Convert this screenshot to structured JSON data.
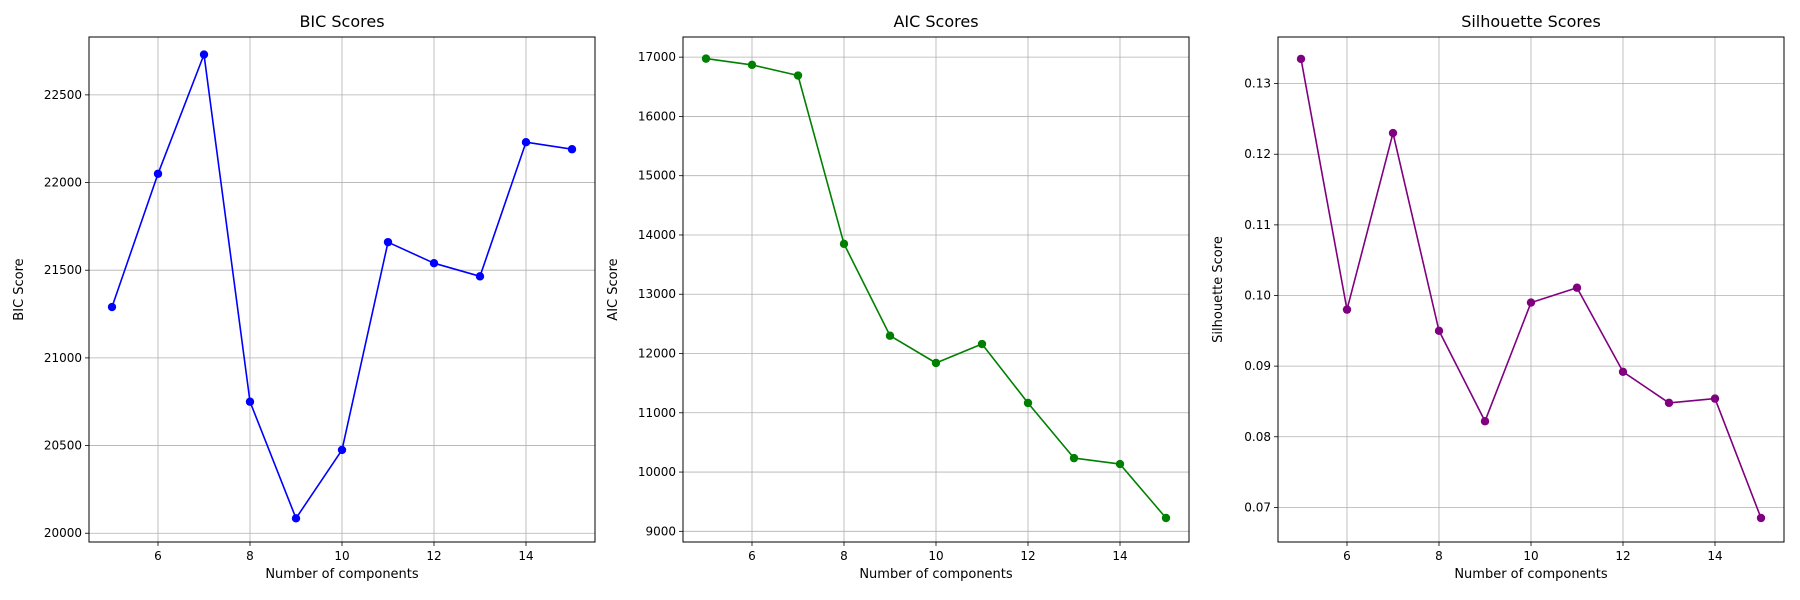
{
  "chart_data": [
    {
      "type": "line",
      "title": "BIC Scores",
      "xlabel": "Number of components",
      "ylabel": "BIC Score",
      "xlim": [
        4.5,
        15.5
      ],
      "ylim": [
        19950,
        22830
      ],
      "xticks": [
        6,
        8,
        10,
        12,
        14
      ],
      "yticks": [
        20000,
        20500,
        21000,
        21500,
        22000,
        22500
      ],
      "grid": true,
      "color": "#0000ff",
      "marker": "circle",
      "x": [
        5,
        6,
        7,
        8,
        9,
        10,
        11,
        12,
        13,
        14,
        15
      ],
      "y": [
        21290,
        22050,
        22730,
        20750,
        20085,
        20475,
        21660,
        21540,
        21465,
        22230,
        22190
      ]
    },
    {
      "type": "line",
      "title": "AIC Scores",
      "xlabel": "Number of components",
      "ylabel": "AIC Score",
      "xlim": [
        4.5,
        15.5
      ],
      "ylim": [
        8820,
        17340
      ],
      "xticks": [
        6,
        8,
        10,
        12,
        14
      ],
      "yticks": [
        9000,
        10000,
        11000,
        12000,
        13000,
        14000,
        15000,
        16000,
        17000
      ],
      "grid": true,
      "color": "#008000",
      "marker": "circle",
      "x": [
        5,
        6,
        7,
        8,
        9,
        10,
        11,
        12,
        13,
        14,
        15
      ],
      "y": [
        16975,
        16870,
        16690,
        13850,
        12300,
        11840,
        12160,
        11165,
        10235,
        10135,
        9225
      ]
    },
    {
      "type": "line",
      "title": "Silhouette Scores",
      "xlabel": "Number of components",
      "ylabel": "Silhouette Score",
      "xlim": [
        4.5,
        15.5
      ],
      "ylim": [
        0.0651,
        0.1366
      ],
      "xticks": [
        6,
        8,
        10,
        12,
        14
      ],
      "yticks": [
        0.07,
        0.08,
        0.09,
        0.1,
        0.11,
        0.12,
        0.13
      ],
      "ytick_labels": [
        "0.07",
        "0.08",
        "0.09",
        "0.10",
        "0.11",
        "0.12",
        "0.13"
      ],
      "grid": true,
      "color": "#800080",
      "marker": "circle",
      "x": [
        5,
        6,
        7,
        8,
        9,
        10,
        11,
        12,
        13,
        14,
        15
      ],
      "y": [
        0.1335,
        0.098,
        0.123,
        0.095,
        0.0822,
        0.099,
        0.1011,
        0.0892,
        0.0848,
        0.0854,
        0.0685
      ]
    }
  ]
}
